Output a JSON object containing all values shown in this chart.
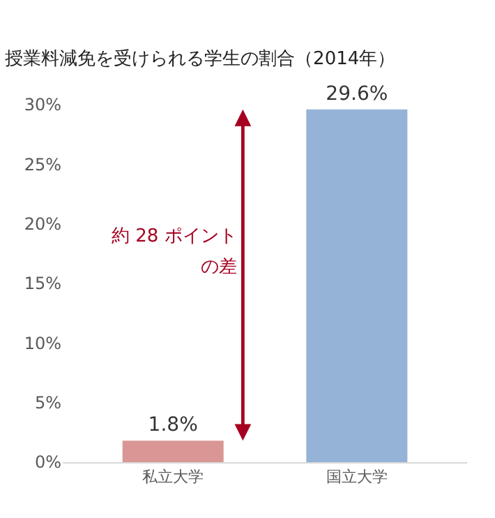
{
  "chart_data": {
    "type": "bar",
    "title": "授業料減免を受けられる学生の割合（2014年）",
    "categories": [
      "私立大学",
      "国立大学"
    ],
    "values": [
      1.8,
      29.6
    ],
    "colors": [
      "#d99694",
      "#95b3d7"
    ],
    "value_labels": [
      "1.8%",
      "29.6%"
    ],
    "ylim": [
      0,
      30
    ],
    "yticks": [
      {
        "value": 0,
        "label": "0%"
      },
      {
        "value": 5,
        "label": "5%"
      },
      {
        "value": 10,
        "label": "10%"
      },
      {
        "value": 15,
        "label": "15%"
      },
      {
        "value": 20,
        "label": "20%"
      },
      {
        "value": 25,
        "label": "25%"
      },
      {
        "value": 30,
        "label": "30%"
      }
    ],
    "annotations": [
      "約 28 ポイント",
      "の差"
    ]
  }
}
